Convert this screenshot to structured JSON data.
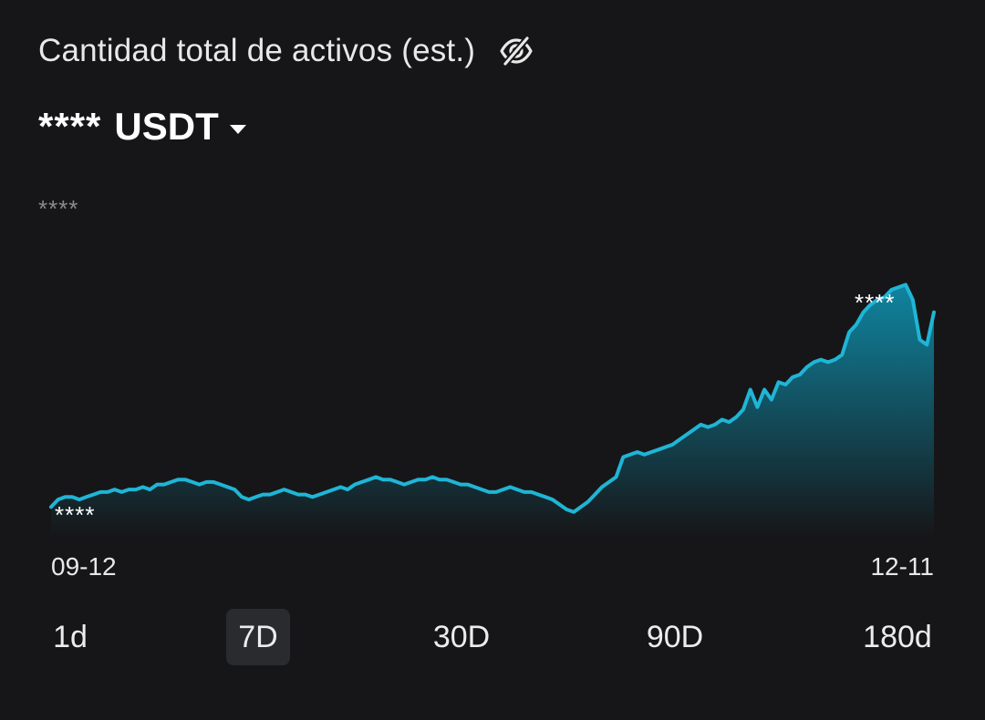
{
  "header": {
    "title": "Cantidad total de activos (est.)",
    "visibility_icon": "eye-slash-icon"
  },
  "balance": {
    "value": "****",
    "currency": "USDT",
    "dropdown_icon": "caret-down-icon"
  },
  "chart": {
    "max_label": "****",
    "high_label": "****",
    "low_label": "****",
    "start_date": "09-12",
    "end_date": "12-11",
    "line_color": "#1fb5d6",
    "fill_top_color": "#0f8aa6",
    "fill_bottom_color": "#161618"
  },
  "range_tabs": {
    "items": [
      {
        "label": "1d",
        "active": false
      },
      {
        "label": "7D",
        "active": true
      },
      {
        "label": "30D",
        "active": false
      },
      {
        "label": "90D",
        "active": false
      },
      {
        "label": "180d",
        "active": false
      }
    ]
  },
  "chart_data": {
    "type": "area",
    "title": "",
    "xlabel": "",
    "ylabel": "",
    "x_range": [
      "09-12",
      "12-11"
    ],
    "values_hidden": true,
    "series": [
      {
        "values": [
          5,
          8,
          9,
          9,
          8,
          9,
          10,
          11,
          11,
          12,
          11,
          12,
          12,
          13,
          12,
          14,
          14,
          15,
          16,
          16,
          15,
          14,
          15,
          15,
          14,
          13,
          12,
          9,
          8,
          9,
          10,
          10,
          11,
          12,
          11,
          10,
          10,
          9,
          10,
          11,
          12,
          13,
          12,
          14,
          15,
          16,
          17,
          16,
          16,
          15,
          14,
          15,
          16,
          16,
          17,
          16,
          16,
          15,
          14,
          14,
          13,
          12,
          11,
          11,
          12,
          13,
          12,
          11,
          11,
          10,
          9,
          8,
          6,
          4,
          3,
          5,
          7,
          10,
          13,
          15,
          17,
          25,
          26,
          27,
          26,
          27,
          28,
          29,
          30,
          32,
          34,
          36,
          38,
          37,
          38,
          40,
          39,
          41,
          44,
          52,
          45,
          52,
          48,
          55,
          54,
          57,
          58,
          61,
          63,
          64,
          63,
          64,
          66,
          75,
          78,
          83,
          86,
          88,
          89,
          92,
          93,
          94,
          88,
          72,
          70,
          83
        ]
      }
    ]
  }
}
